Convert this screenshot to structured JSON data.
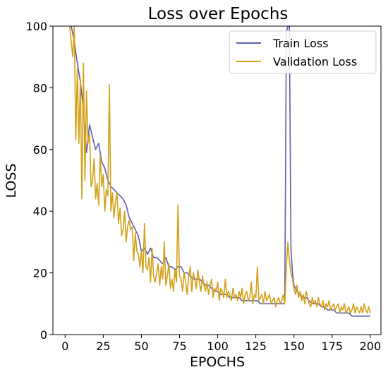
{
  "chart_data": {
    "type": "line",
    "title": "Loss over Epochs",
    "xlabel": "EPOCHS",
    "ylabel": "LOSS",
    "xlim": [
      -8,
      207
    ],
    "ylim": [
      0,
      100
    ],
    "xticks": [
      0,
      25,
      50,
      75,
      100,
      125,
      150,
      175,
      200
    ],
    "yticks": [
      0,
      20,
      40,
      60,
      80,
      100
    ],
    "grid": false,
    "legend_position": "top-right",
    "series": [
      {
        "name": "Train Loss",
        "color": "#5a5fb0",
        "points": [
          [
            4,
            100
          ],
          [
            6,
            95
          ],
          [
            8,
            88
          ],
          [
            10,
            82
          ],
          [
            12,
            73
          ],
          [
            14,
            59
          ],
          [
            16,
            68
          ],
          [
            18,
            64
          ],
          [
            20,
            60
          ],
          [
            22,
            62
          ],
          [
            24,
            56
          ],
          [
            26,
            54
          ],
          [
            28,
            50
          ],
          [
            30,
            48
          ],
          [
            32,
            47
          ],
          [
            34,
            46
          ],
          [
            36,
            45
          ],
          [
            38,
            44
          ],
          [
            40,
            42
          ],
          [
            42,
            38
          ],
          [
            44,
            36
          ],
          [
            46,
            34
          ],
          [
            48,
            32
          ],
          [
            50,
            27
          ],
          [
            52,
            28
          ],
          [
            54,
            26
          ],
          [
            56,
            28
          ],
          [
            58,
            25
          ],
          [
            60,
            25
          ],
          [
            62,
            24
          ],
          [
            64,
            23
          ],
          [
            66,
            25
          ],
          [
            68,
            22
          ],
          [
            70,
            22
          ],
          [
            72,
            21
          ],
          [
            74,
            22
          ],
          [
            76,
            22
          ],
          [
            78,
            20
          ],
          [
            80,
            20
          ],
          [
            82,
            19
          ],
          [
            84,
            18
          ],
          [
            86,
            18
          ],
          [
            88,
            18
          ],
          [
            90,
            17
          ],
          [
            92,
            16
          ],
          [
            94,
            16
          ],
          [
            96,
            15
          ],
          [
            98,
            14
          ],
          [
            100,
            14
          ],
          [
            102,
            13
          ],
          [
            104,
            13
          ],
          [
            106,
            13
          ],
          [
            108,
            12
          ],
          [
            110,
            12
          ],
          [
            112,
            12
          ],
          [
            114,
            12
          ],
          [
            116,
            11
          ],
          [
            118,
            11
          ],
          [
            120,
            11
          ],
          [
            122,
            11
          ],
          [
            124,
            11
          ],
          [
            126,
            11
          ],
          [
            128,
            10
          ],
          [
            130,
            10
          ],
          [
            132,
            10
          ],
          [
            134,
            10
          ],
          [
            136,
            10
          ],
          [
            138,
            10
          ],
          [
            140,
            10
          ],
          [
            142,
            10
          ],
          [
            144,
            10
          ],
          [
            145,
            98
          ],
          [
            146,
            100
          ],
          [
            147,
            100
          ],
          [
            148,
            28
          ],
          [
            149,
            20
          ],
          [
            150,
            16
          ],
          [
            152,
            14
          ],
          [
            154,
            13
          ],
          [
            156,
            12
          ],
          [
            158,
            12
          ],
          [
            160,
            11
          ],
          [
            162,
            10
          ],
          [
            164,
            10
          ],
          [
            166,
            10
          ],
          [
            168,
            9
          ],
          [
            170,
            9
          ],
          [
            172,
            8
          ],
          [
            174,
            8
          ],
          [
            176,
            8
          ],
          [
            178,
            7
          ],
          [
            180,
            7
          ],
          [
            182,
            7
          ],
          [
            184,
            7
          ],
          [
            186,
            7
          ],
          [
            188,
            6
          ],
          [
            190,
            6
          ],
          [
            192,
            6
          ],
          [
            194,
            6
          ],
          [
            196,
            6
          ],
          [
            198,
            6
          ],
          [
            200,
            6
          ]
        ]
      },
      {
        "name": "Validation Loss",
        "color": "#d4a017",
        "points": [
          [
            3,
            100
          ],
          [
            5,
            90
          ],
          [
            6,
            100
          ],
          [
            7,
            63
          ],
          [
            8,
            86
          ],
          [
            9,
            62
          ],
          [
            10,
            83
          ],
          [
            11,
            44
          ],
          [
            12,
            88
          ],
          [
            13,
            50
          ],
          [
            14,
            79
          ],
          [
            15,
            62
          ],
          [
            16,
            65
          ],
          [
            17,
            48
          ],
          [
            18,
            50
          ],
          [
            19,
            57
          ],
          [
            20,
            44
          ],
          [
            21,
            49
          ],
          [
            22,
            42
          ],
          [
            23,
            58
          ],
          [
            24,
            48
          ],
          [
            25,
            52
          ],
          [
            26,
            40
          ],
          [
            27,
            47
          ],
          [
            28,
            45
          ],
          [
            29,
            81
          ],
          [
            30,
            40
          ],
          [
            31,
            46
          ],
          [
            32,
            38
          ],
          [
            33,
            43
          ],
          [
            34,
            46
          ],
          [
            35,
            36
          ],
          [
            36,
            41
          ],
          [
            37,
            32
          ],
          [
            38,
            34
          ],
          [
            39,
            40
          ],
          [
            40,
            30
          ],
          [
            41,
            35
          ],
          [
            42,
            37
          ],
          [
            43,
            34
          ],
          [
            44,
            35
          ],
          [
            45,
            24
          ],
          [
            46,
            33
          ],
          [
            47,
            27
          ],
          [
            48,
            26
          ],
          [
            49,
            22
          ],
          [
            50,
            27
          ],
          [
            51,
            20
          ],
          [
            52,
            36
          ],
          [
            53,
            22
          ],
          [
            54,
            21
          ],
          [
            55,
            25
          ],
          [
            56,
            17
          ],
          [
            57,
            28
          ],
          [
            58,
            19
          ],
          [
            59,
            17
          ],
          [
            60,
            20
          ],
          [
            61,
            23
          ],
          [
            62,
            16
          ],
          [
            63,
            22
          ],
          [
            64,
            18
          ],
          [
            65,
            30
          ],
          [
            66,
            16
          ],
          [
            67,
            19
          ],
          [
            68,
            23
          ],
          [
            69,
            15
          ],
          [
            70,
            18
          ],
          [
            71,
            14
          ],
          [
            72,
            21
          ],
          [
            73,
            17
          ],
          [
            74,
            42
          ],
          [
            75,
            19
          ],
          [
            76,
            18
          ],
          [
            77,
            14
          ],
          [
            78,
            20
          ],
          [
            79,
            17
          ],
          [
            80,
            13
          ],
          [
            81,
            19
          ],
          [
            82,
            22
          ],
          [
            83,
            14
          ],
          [
            84,
            20
          ],
          [
            85,
            18
          ],
          [
            86,
            15
          ],
          [
            87,
            21
          ],
          [
            88,
            17
          ],
          [
            89,
            14
          ],
          [
            90,
            19
          ],
          [
            91,
            16
          ],
          [
            92,
            14
          ],
          [
            93,
            17
          ],
          [
            94,
            13
          ],
          [
            95,
            16
          ],
          [
            96,
            18
          ],
          [
            97,
            12
          ],
          [
            98,
            15
          ],
          [
            99,
            14
          ],
          [
            100,
            17
          ],
          [
            101,
            11
          ],
          [
            102,
            15
          ],
          [
            103,
            14
          ],
          [
            104,
            12
          ],
          [
            105,
            18
          ],
          [
            106,
            12
          ],
          [
            107,
            14
          ],
          [
            108,
            13
          ],
          [
            109,
            11
          ],
          [
            110,
            15
          ],
          [
            111,
            12
          ],
          [
            112,
            13
          ],
          [
            113,
            11
          ],
          [
            114,
            14
          ],
          [
            115,
            12
          ],
          [
            116,
            15
          ],
          [
            117,
            10
          ],
          [
            118,
            13
          ],
          [
            119,
            14
          ],
          [
            120,
            11
          ],
          [
            121,
            12
          ],
          [
            122,
            17
          ],
          [
            123,
            10
          ],
          [
            124,
            13
          ],
          [
            125,
            12
          ],
          [
            126,
            22
          ],
          [
            127,
            11
          ],
          [
            128,
            12
          ],
          [
            129,
            13
          ],
          [
            130,
            10
          ],
          [
            131,
            14
          ],
          [
            132,
            11
          ],
          [
            133,
            12
          ],
          [
            134,
            13
          ],
          [
            135,
            10
          ],
          [
            136,
            11
          ],
          [
            137,
            12
          ],
          [
            138,
            9
          ],
          [
            139,
            11
          ],
          [
            140,
            12
          ],
          [
            141,
            10
          ],
          [
            142,
            11
          ],
          [
            143,
            13
          ],
          [
            144,
            10
          ],
          [
            145,
            22
          ],
          [
            146,
            30
          ],
          [
            147,
            24
          ],
          [
            148,
            20
          ],
          [
            149,
            18
          ],
          [
            150,
            15
          ],
          [
            151,
            13
          ],
          [
            152,
            16
          ],
          [
            153,
            12
          ],
          [
            154,
            14
          ],
          [
            155,
            11
          ],
          [
            156,
            13
          ],
          [
            157,
            10
          ],
          [
            158,
            14
          ],
          [
            159,
            12
          ],
          [
            160,
            10
          ],
          [
            161,
            9
          ],
          [
            162,
            12
          ],
          [
            163,
            10
          ],
          [
            164,
            11
          ],
          [
            165,
            9
          ],
          [
            166,
            12
          ],
          [
            167,
            10
          ],
          [
            168,
            9
          ],
          [
            169,
            11
          ],
          [
            170,
            8
          ],
          [
            171,
            10
          ],
          [
            172,
            9
          ],
          [
            173,
            11
          ],
          [
            174,
            8
          ],
          [
            175,
            9
          ],
          [
            176,
            10
          ],
          [
            177,
            8
          ],
          [
            178,
            9
          ],
          [
            179,
            10
          ],
          [
            180,
            7
          ],
          [
            181,
            9
          ],
          [
            182,
            8
          ],
          [
            183,
            10
          ],
          [
            184,
            7
          ],
          [
            185,
            8
          ],
          [
            186,
            9
          ],
          [
            187,
            7
          ],
          [
            188,
            8
          ],
          [
            189,
            10
          ],
          [
            190,
            7
          ],
          [
            191,
            9
          ],
          [
            192,
            8
          ],
          [
            193,
            7
          ],
          [
            194,
            9
          ],
          [
            195,
            7
          ],
          [
            196,
            10
          ],
          [
            197,
            8
          ],
          [
            198,
            7
          ],
          [
            199,
            9
          ],
          [
            200,
            7
          ]
        ]
      }
    ]
  }
}
